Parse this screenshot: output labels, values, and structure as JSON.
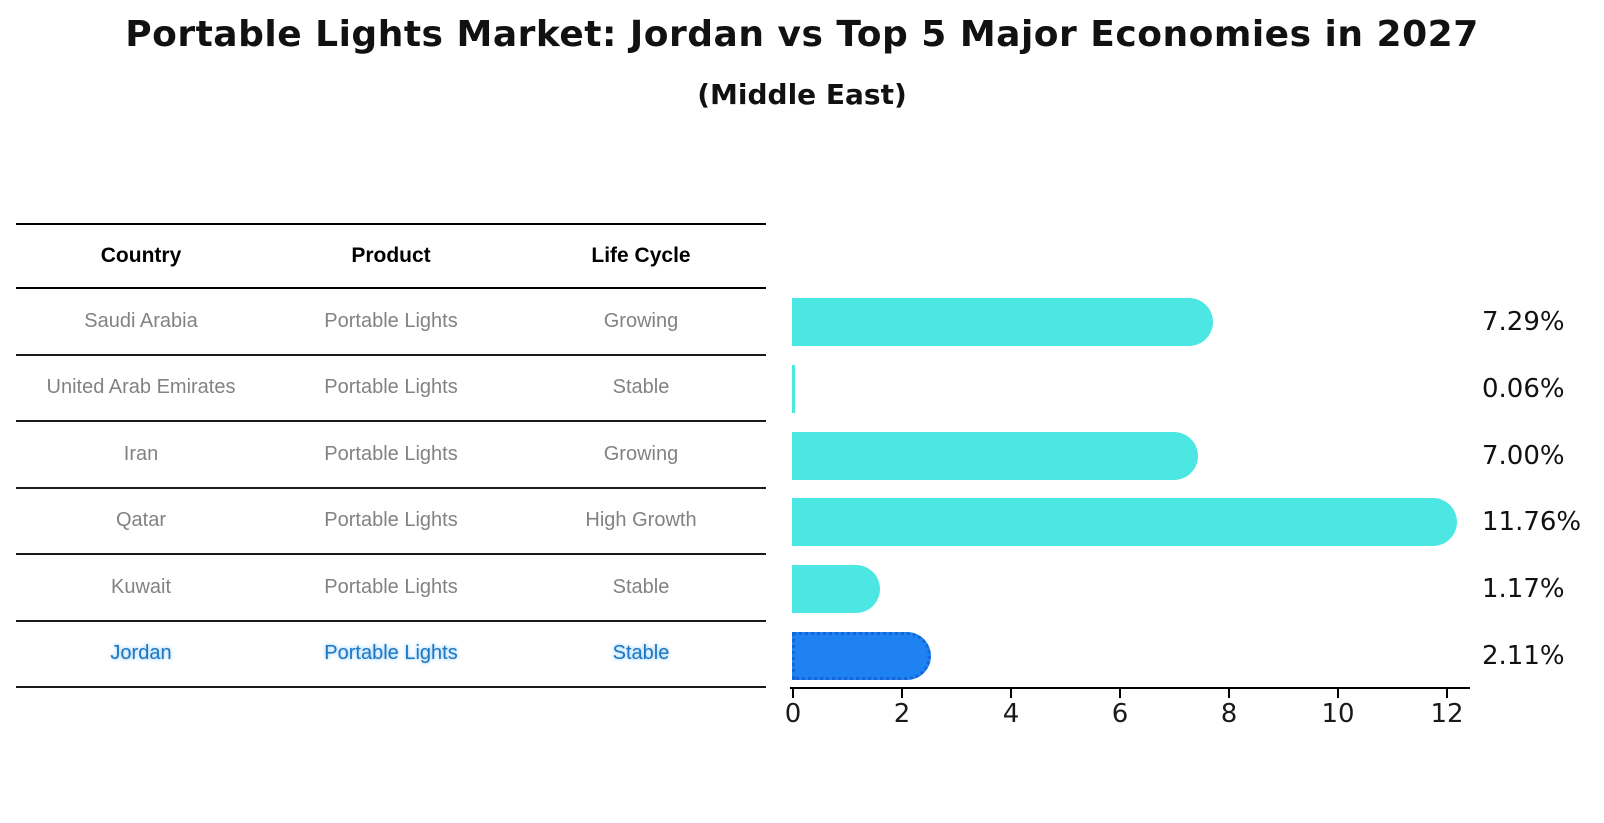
{
  "title": "Portable Lights Market: Jordan vs Top 5 Major Economies in 2027",
  "subtitle": "(Middle East)",
  "table": {
    "headers": [
      "Country",
      "Product",
      "Life Cycle"
    ],
    "rows": [
      {
        "country": "Saudi Arabia",
        "product": "Portable Lights",
        "life_cycle": "Growing",
        "highlight": false
      },
      {
        "country": "United Arab Emirates",
        "product": "Portable Lights",
        "life_cycle": "Stable",
        "highlight": false
      },
      {
        "country": "Iran",
        "product": "Portable Lights",
        "life_cycle": "Growing",
        "highlight": false
      },
      {
        "country": "Qatar",
        "product": "Portable Lights",
        "life_cycle": "High Growth",
        "highlight": false
      },
      {
        "country": "Kuwait",
        "product": "Portable Lights",
        "life_cycle": "Stable",
        "highlight": false
      },
      {
        "country": "Jordan",
        "product": "Portable Lights",
        "life_cycle": "Stable",
        "highlight": true
      }
    ]
  },
  "chart_data": {
    "type": "bar",
    "orientation": "horizontal",
    "categories": [
      "Saudi Arabia",
      "United Arab Emirates",
      "Iran",
      "Qatar",
      "Kuwait",
      "Jordan"
    ],
    "values": [
      7.29,
      0.06,
      7.0,
      11.76,
      1.17,
      2.11
    ],
    "value_labels": [
      "7.29%",
      "0.06%",
      "7.00%",
      "11.76%",
      "1.17%",
      "2.11%"
    ],
    "x_ticks": [
      0,
      2,
      4,
      6,
      8,
      10,
      12
    ],
    "xlim": [
      0,
      12.5
    ],
    "grid": false,
    "legend": false,
    "highlight_index": 5,
    "bar_color": "#4DE7E3",
    "highlight_bar_color": "#1E82F2",
    "highlight_border_color": "#1565D8"
  },
  "colors": {
    "title_text": "#111111",
    "row_text": "#828282",
    "header_text": "#000000",
    "highlight_text": "#2176BD",
    "axis": "#000000"
  }
}
